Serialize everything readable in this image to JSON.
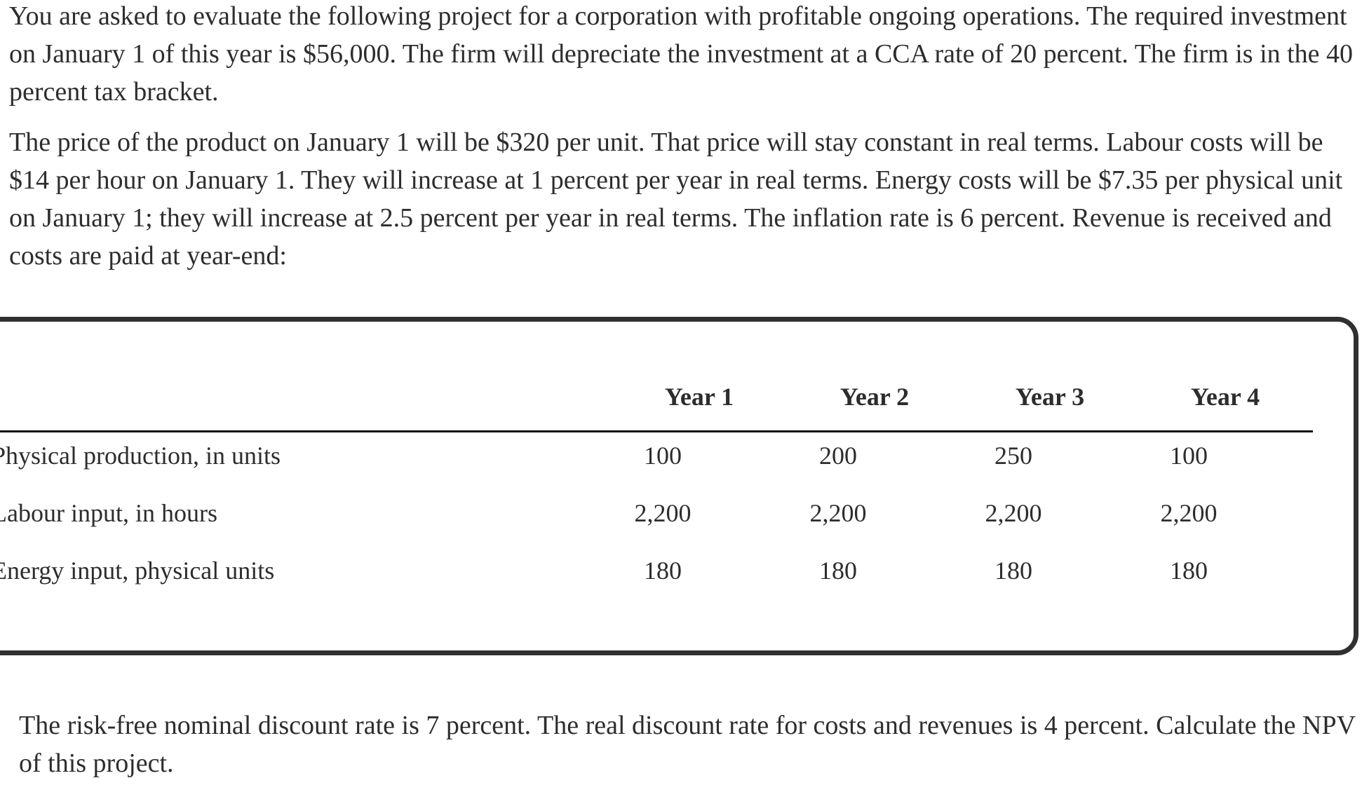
{
  "colors": {
    "background": "#ffffff",
    "text": "#2d2d2d",
    "box_border": "#303030",
    "header_rule": "#101010"
  },
  "problem": {
    "paragraph1_lines": [
      "You are asked to evaluate the following project for a corporation with profitable ongoing operations. The required investment",
      "on January 1 of this year is $56,000. The firm will depreciate the investment at a CCA rate of 20 percent. The firm is in the 40",
      "percent tax bracket."
    ],
    "paragraph2_lines": [
      "The price of the product on January 1 will be $320 per unit. That price will stay constant in real terms. Labour costs will be",
      "$14 per hour on January 1. They will increase at 1 percent per year in real terms. Energy costs will be $7.35 per physical unit",
      "on January 1; they will increase at 2.5 percent per year in real terms. The inflation rate is 6 percent. Revenue is received and",
      "costs are paid at year-end:"
    ],
    "paragraph3_lines": [
      "The risk-free nominal discount rate is 7 percent. The real discount rate for costs and revenues is 4 percent. Calculate the NPV",
      "of this project."
    ]
  },
  "table": {
    "column_headers": [
      "Year 1",
      "Year 2",
      "Year 3",
      "Year 4"
    ],
    "rows": [
      {
        "label": "Physical production, in units",
        "values": [
          "100",
          "200",
          "250",
          "100"
        ]
      },
      {
        "label": "Labour input, in hours",
        "values": [
          "2,200",
          "2,200",
          "2,200",
          "2,200"
        ]
      },
      {
        "label": "Energy input, physical units",
        "values": [
          "180",
          "180",
          "180",
          "180"
        ]
      }
    ]
  }
}
